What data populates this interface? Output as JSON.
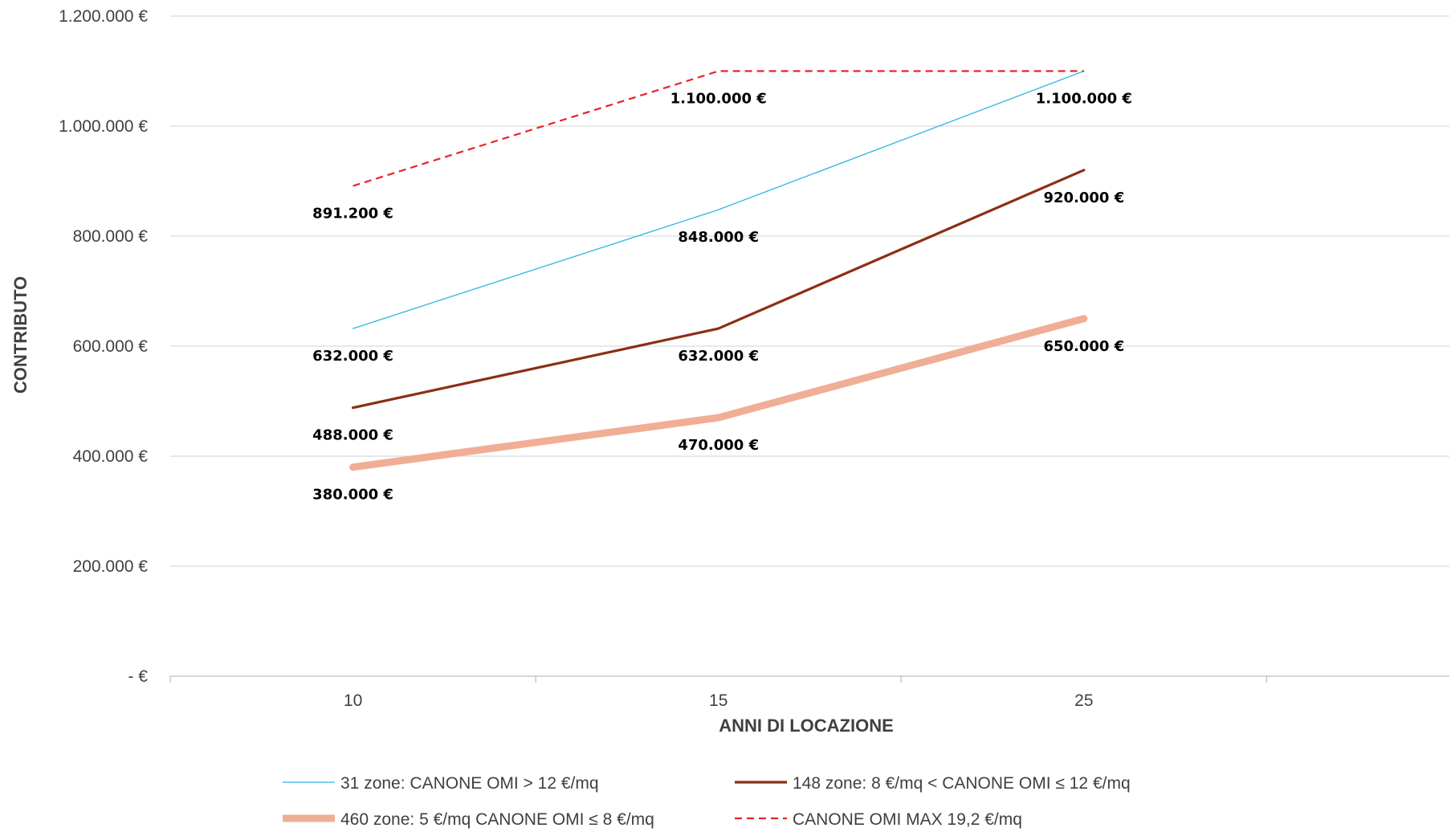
{
  "chart_data": {
    "type": "line",
    "xlabel": "ANNI DI LOCAZIONE",
    "ylabel": "CONTRIBUTO",
    "categories": [
      "10",
      "15",
      "25"
    ],
    "ylim": [
      0,
      1200000
    ],
    "y_ticks": [
      {
        "value": 0,
        "label": "-   €"
      },
      {
        "value": 200000,
        "label": "200.000 €"
      },
      {
        "value": 400000,
        "label": "400.000 €"
      },
      {
        "value": 600000,
        "label": "600.000 €"
      },
      {
        "value": 800000,
        "label": "800.000 €"
      },
      {
        "value": 1000000,
        "label": "1.000.000 €"
      },
      {
        "value": 1200000,
        "label": "1.200.000 €"
      }
    ],
    "grid": true,
    "legend_position": "bottom",
    "series": [
      {
        "name": "31 zone: CANONE OMI > 12 €/mq",
        "values": [
          632000,
          848000,
          1100000
        ],
        "labels": [
          "632.000 €",
          "848.000 €",
          ""
        ],
        "color": "#2FB5E0",
        "style": "thin"
      },
      {
        "name": "148 zone: 8 €/mq < CANONE OMI ≤ 12 €/mq",
        "values": [
          488000,
          632000,
          920000
        ],
        "labels": [
          "488.000 €",
          "632.000 €",
          "920.000 €"
        ],
        "color": "#8B2E14",
        "style": "medium"
      },
      {
        "name": "460 zone: 5 €/mq CANONE OMI ≤ 8 €/mq",
        "values": [
          380000,
          470000,
          650000
        ],
        "labels": [
          "380.000 €",
          "470.000 €",
          "650.000 €"
        ],
        "color": "#F0AE96",
        "style": "thick"
      },
      {
        "name": "CANONE OMI MAX 19,2 €/mq",
        "values": [
          891200,
          1100000,
          1100000
        ],
        "labels": [
          "891.200 €",
          "1.100.000 €",
          "1.100.000 €"
        ],
        "color": "#E8242A",
        "style": "dashed"
      }
    ]
  }
}
